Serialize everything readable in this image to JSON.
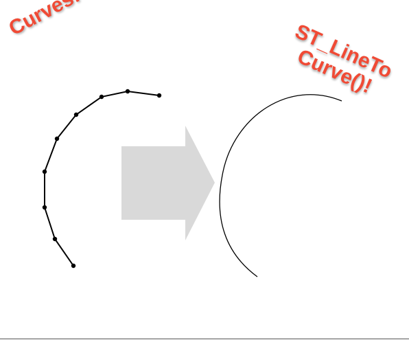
{
  "labels": {
    "left": "Curves!",
    "right_line1": "ST_LineTo",
    "right_line2": "Curve()!"
  },
  "colors": {
    "label": "#f04a35",
    "arrow": "#d9d9d9",
    "stroke": "#000000"
  }
}
